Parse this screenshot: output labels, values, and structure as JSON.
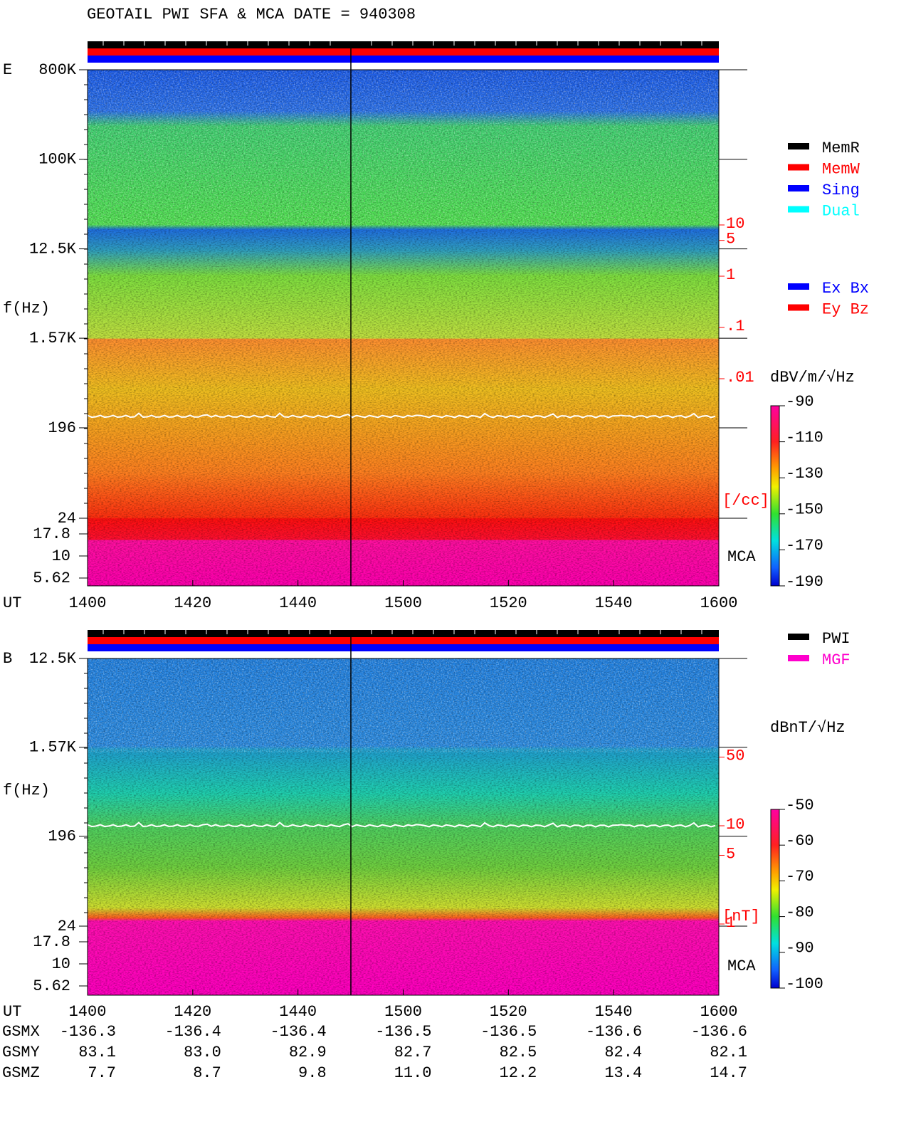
{
  "title": "GEOTAIL  PWI SFA & MCA   DATE = 940308",
  "chart_data": [
    {
      "type": "spectrogram",
      "panel_label": "E",
      "ylabel": "f(Hz)",
      "y_log": true,
      "yticks": [
        {
          "value": 800000,
          "label": "800K"
        },
        {
          "value": 100000,
          "label": "100K"
        },
        {
          "value": 12500,
          "label": "12.5K"
        },
        {
          "value": 1570,
          "label": "1.57K"
        },
        196,
        24
      ],
      "mca_label": "MCA",
      "mca_yticks": [
        17.8,
        10,
        5.62
      ],
      "xlabel": "UT",
      "categories": [
        "1400",
        "1420",
        "1440",
        "1500",
        "1520",
        "1540",
        "1600"
      ],
      "status_legend": [
        {
          "name": "MemR",
          "color": "#000000"
        },
        {
          "name": "MemW",
          "color": "#ff0000"
        },
        {
          "name": "Sing",
          "color": "#0000ff"
        },
        {
          "name": "Dual",
          "color": "#00ffff"
        }
      ],
      "component_legend": [
        {
          "name": "Ex Bx",
          "color": "#0000ff"
        },
        {
          "name": "Ey Bz",
          "color": "#ff0000"
        }
      ],
      "density_ticks": [
        10,
        5,
        1,
        {
          "value": 0.1,
          "label": ".1"
        },
        {
          "value": 0.01,
          "label": ".01"
        }
      ],
      "density_unit": "[/cc]",
      "colorbar_title": "dBV/m/√Hz",
      "clim": [
        -190,
        -90
      ],
      "cticks": [
        -90,
        -110,
        -130,
        -150,
        -170,
        -190
      ]
    },
    {
      "type": "spectrogram",
      "panel_label": "B",
      "ylabel": "f(Hz)",
      "y_log": true,
      "yticks": [
        {
          "value": 12500,
          "label": "12.5K"
        },
        {
          "value": 1570,
          "label": "1.57K"
        },
        196,
        24
      ],
      "mca_label": "MCA",
      "mca_yticks": [
        17.8,
        10,
        5.62
      ],
      "xlabel": "UT",
      "categories": [
        "1400",
        "1420",
        "1440",
        "1500",
        "1520",
        "1540",
        "1600"
      ],
      "status_legend": [
        {
          "name": "PWI",
          "color": "#000000"
        },
        {
          "name": "MGF",
          "color": "#ff00cc"
        }
      ],
      "density_ticks": [
        50,
        10,
        5,
        1
      ],
      "density_unit": "[nT]",
      "colorbar_title": "dBnT/√Hz",
      "clim": [
        -100,
        -50
      ],
      "cticks": [
        -50,
        -60,
        -70,
        -80,
        -90,
        -100
      ]
    }
  ],
  "orbit": [
    {
      "name": "GSMX",
      "values": [
        "-136.3",
        "-136.4",
        "-136.4",
        "-136.5",
        "-136.5",
        "-136.6",
        "-136.6"
      ]
    },
    {
      "name": "GSMY",
      "values": [
        "83.1",
        "83.0",
        "82.9",
        "82.7",
        "82.5",
        "82.4",
        "82.1"
      ]
    },
    {
      "name": "GSMZ",
      "values": [
        "7.7",
        "8.7",
        "9.8",
        "11.0",
        "12.2",
        "13.4",
        "14.7"
      ]
    }
  ]
}
